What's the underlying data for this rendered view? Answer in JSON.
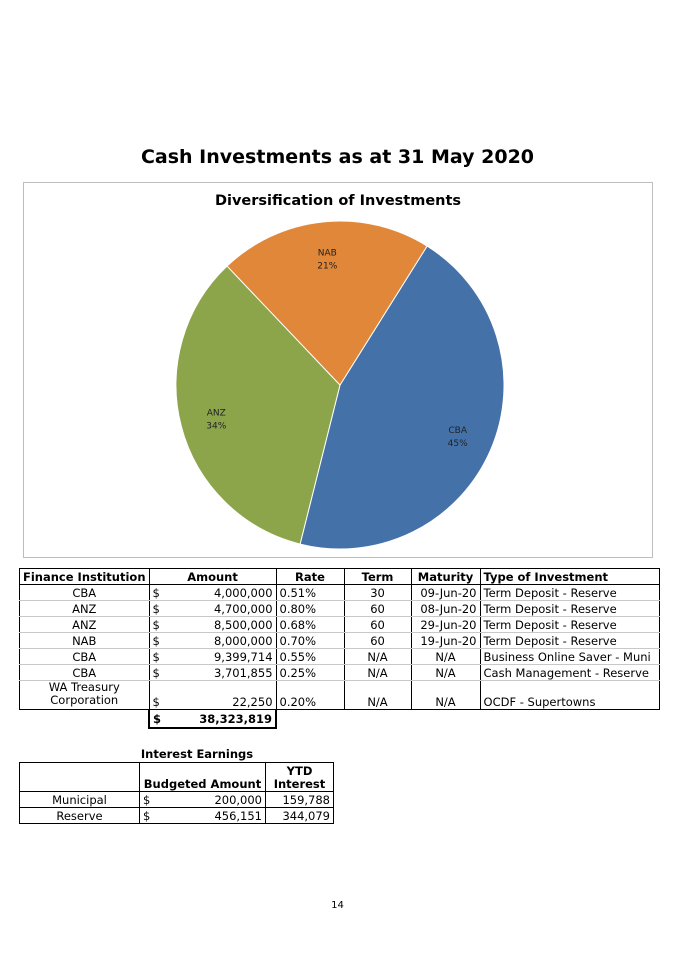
{
  "page_title": "Cash Investments as at 31 May 2020",
  "chart_data": {
    "type": "pie",
    "title": "Diversification of Investments",
    "series": [
      {
        "name": "CBA",
        "value": 45,
        "label": "45%",
        "color": "#4472a8"
      },
      {
        "name": "ANZ",
        "value": 34,
        "label": "34%",
        "color": "#8ca54b"
      },
      {
        "name": "NAB",
        "value": 21,
        "label": "21%",
        "color": "#e0873a"
      }
    ],
    "data_labels": "inside, category name and percentage"
  },
  "investments": {
    "headers": {
      "institution": "Finance Institution",
      "amount": "Amount",
      "rate": "Rate",
      "term": "Term",
      "maturity": "Maturity",
      "type": "Type of Investment"
    },
    "rows": [
      {
        "institution": "CBA",
        "currency": "$",
        "amount": "4,000,000",
        "rate": "0.51%",
        "term": "30",
        "maturity": "09-Jun-20",
        "type": "Term Deposit - Reserve"
      },
      {
        "institution": "ANZ",
        "currency": "$",
        "amount": "4,700,000",
        "rate": "0.80%",
        "term": "60",
        "maturity": "08-Jun-20",
        "type": "Term Deposit - Reserve"
      },
      {
        "institution": "ANZ",
        "currency": "$",
        "amount": "8,500,000",
        "rate": "0.68%",
        "term": "60",
        "maturity": "29-Jun-20",
        "type": "Term Deposit - Reserve"
      },
      {
        "institution": "NAB",
        "currency": "$",
        "amount": "8,000,000",
        "rate": "0.70%",
        "term": "60",
        "maturity": "19-Jun-20",
        "type": "Term Deposit - Reserve"
      },
      {
        "institution": "CBA",
        "currency": "$",
        "amount": "9,399,714",
        "rate": "0.55%",
        "term": "N/A",
        "maturity": "N/A",
        "type": "Business Online Saver - Muni"
      },
      {
        "institution": "CBA",
        "currency": "$",
        "amount": "3,701,855",
        "rate": "0.25%",
        "term": "N/A",
        "maturity": "N/A",
        "type": "Cash Management - Reserve"
      },
      {
        "institution_line1": "WA Treasury",
        "institution_line2": "Corporation",
        "currency": "$",
        "amount": "22,250",
        "rate": "0.20%",
        "term": "N/A",
        "maturity": "N/A",
        "type": "OCDF - Supertowns"
      }
    ],
    "total": {
      "currency": "$",
      "amount": "38,323,819"
    }
  },
  "interest": {
    "title": "Interest Earnings",
    "headers": {
      "budgeted": "Budgeted Amount",
      "ytd_line1": "YTD",
      "ytd_line2": "Interest"
    },
    "rows": [
      {
        "category": "Municipal",
        "currency": "$",
        "budgeted": "200,000",
        "ytd": "159,788"
      },
      {
        "category": "Reserve",
        "currency": "$",
        "budgeted": "456,151",
        "ytd": "344,079"
      }
    ]
  },
  "page_number": "14"
}
